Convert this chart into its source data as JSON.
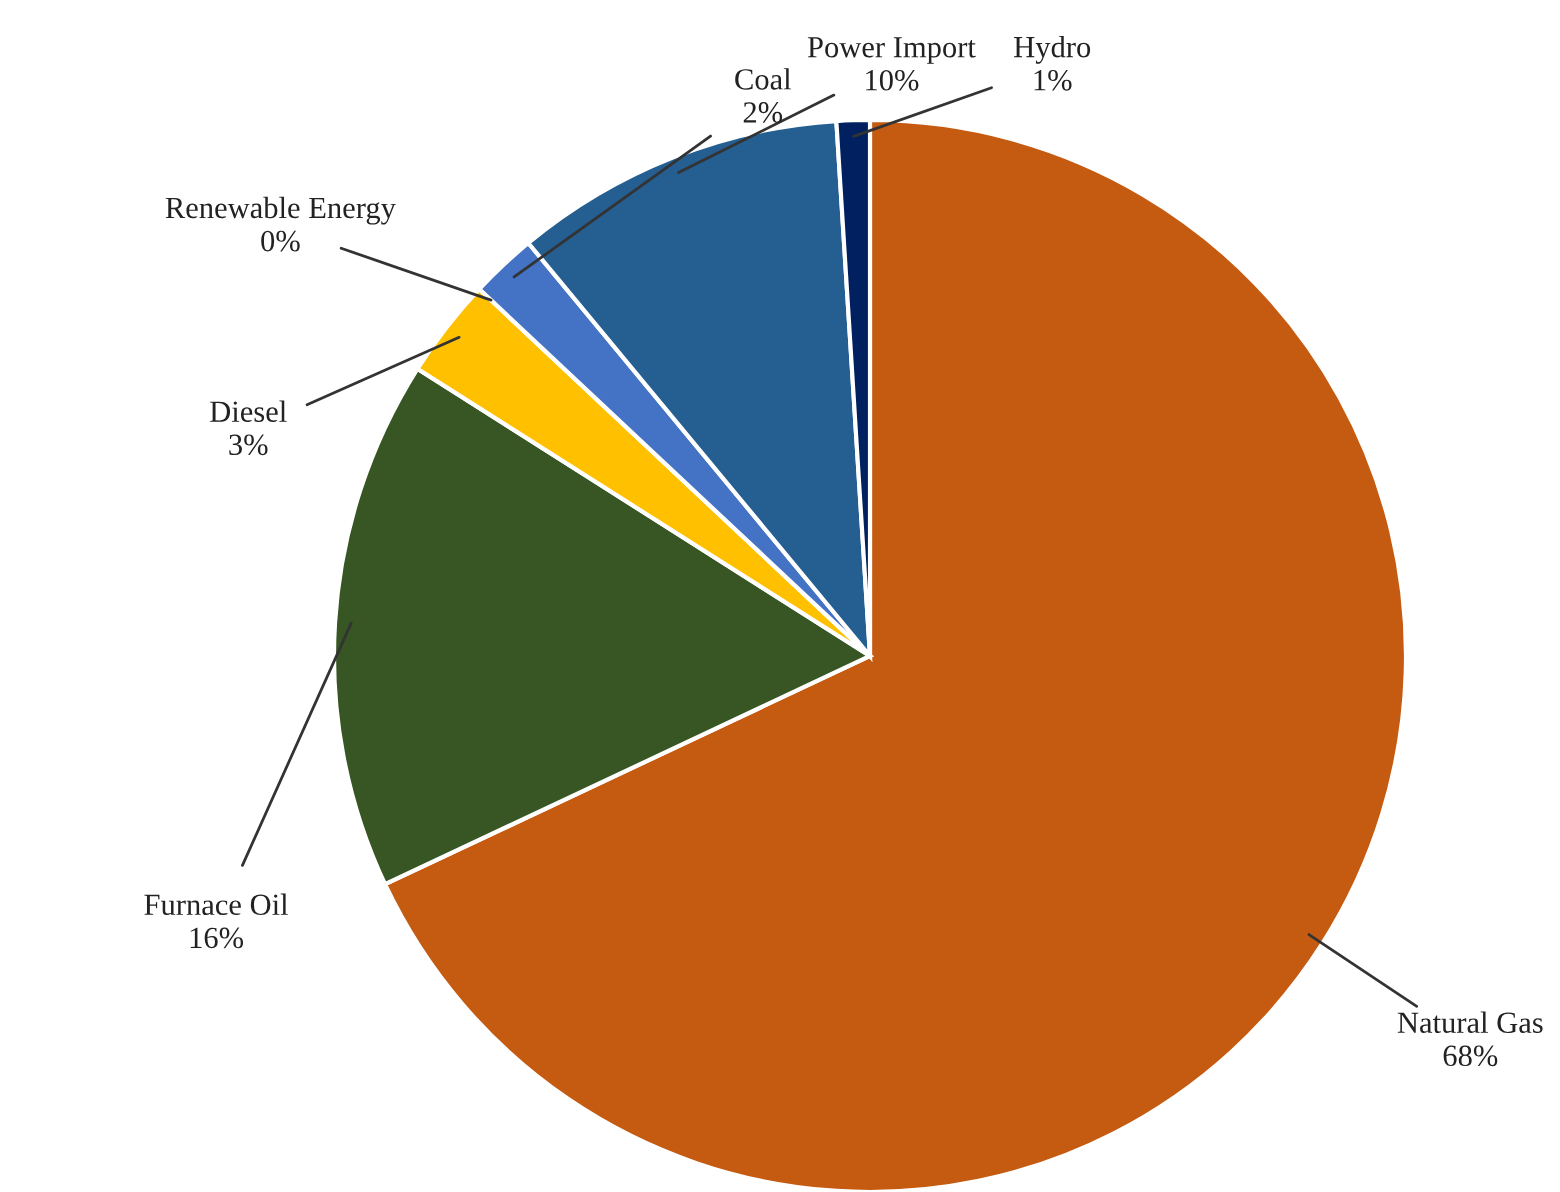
{
  "chart_data": {
    "type": "pie",
    "categories": [
      "Natural Gas",
      "Furnace Oil",
      "Diesel",
      "Renewable Energy",
      "Coal",
      "Power Import",
      "Hydro"
    ],
    "values": [
      68,
      16,
      3,
      0,
      2,
      10,
      1
    ],
    "colors": [
      "#c55a11",
      "#375623",
      "#ffc000",
      "#70ad47",
      "#4472c4",
      "#255e91",
      "#002060"
    ],
    "value_labels": [
      "68%",
      "16%",
      "3%",
      "0%",
      "2%",
      "10%",
      "1%"
    ],
    "legend": false
  }
}
